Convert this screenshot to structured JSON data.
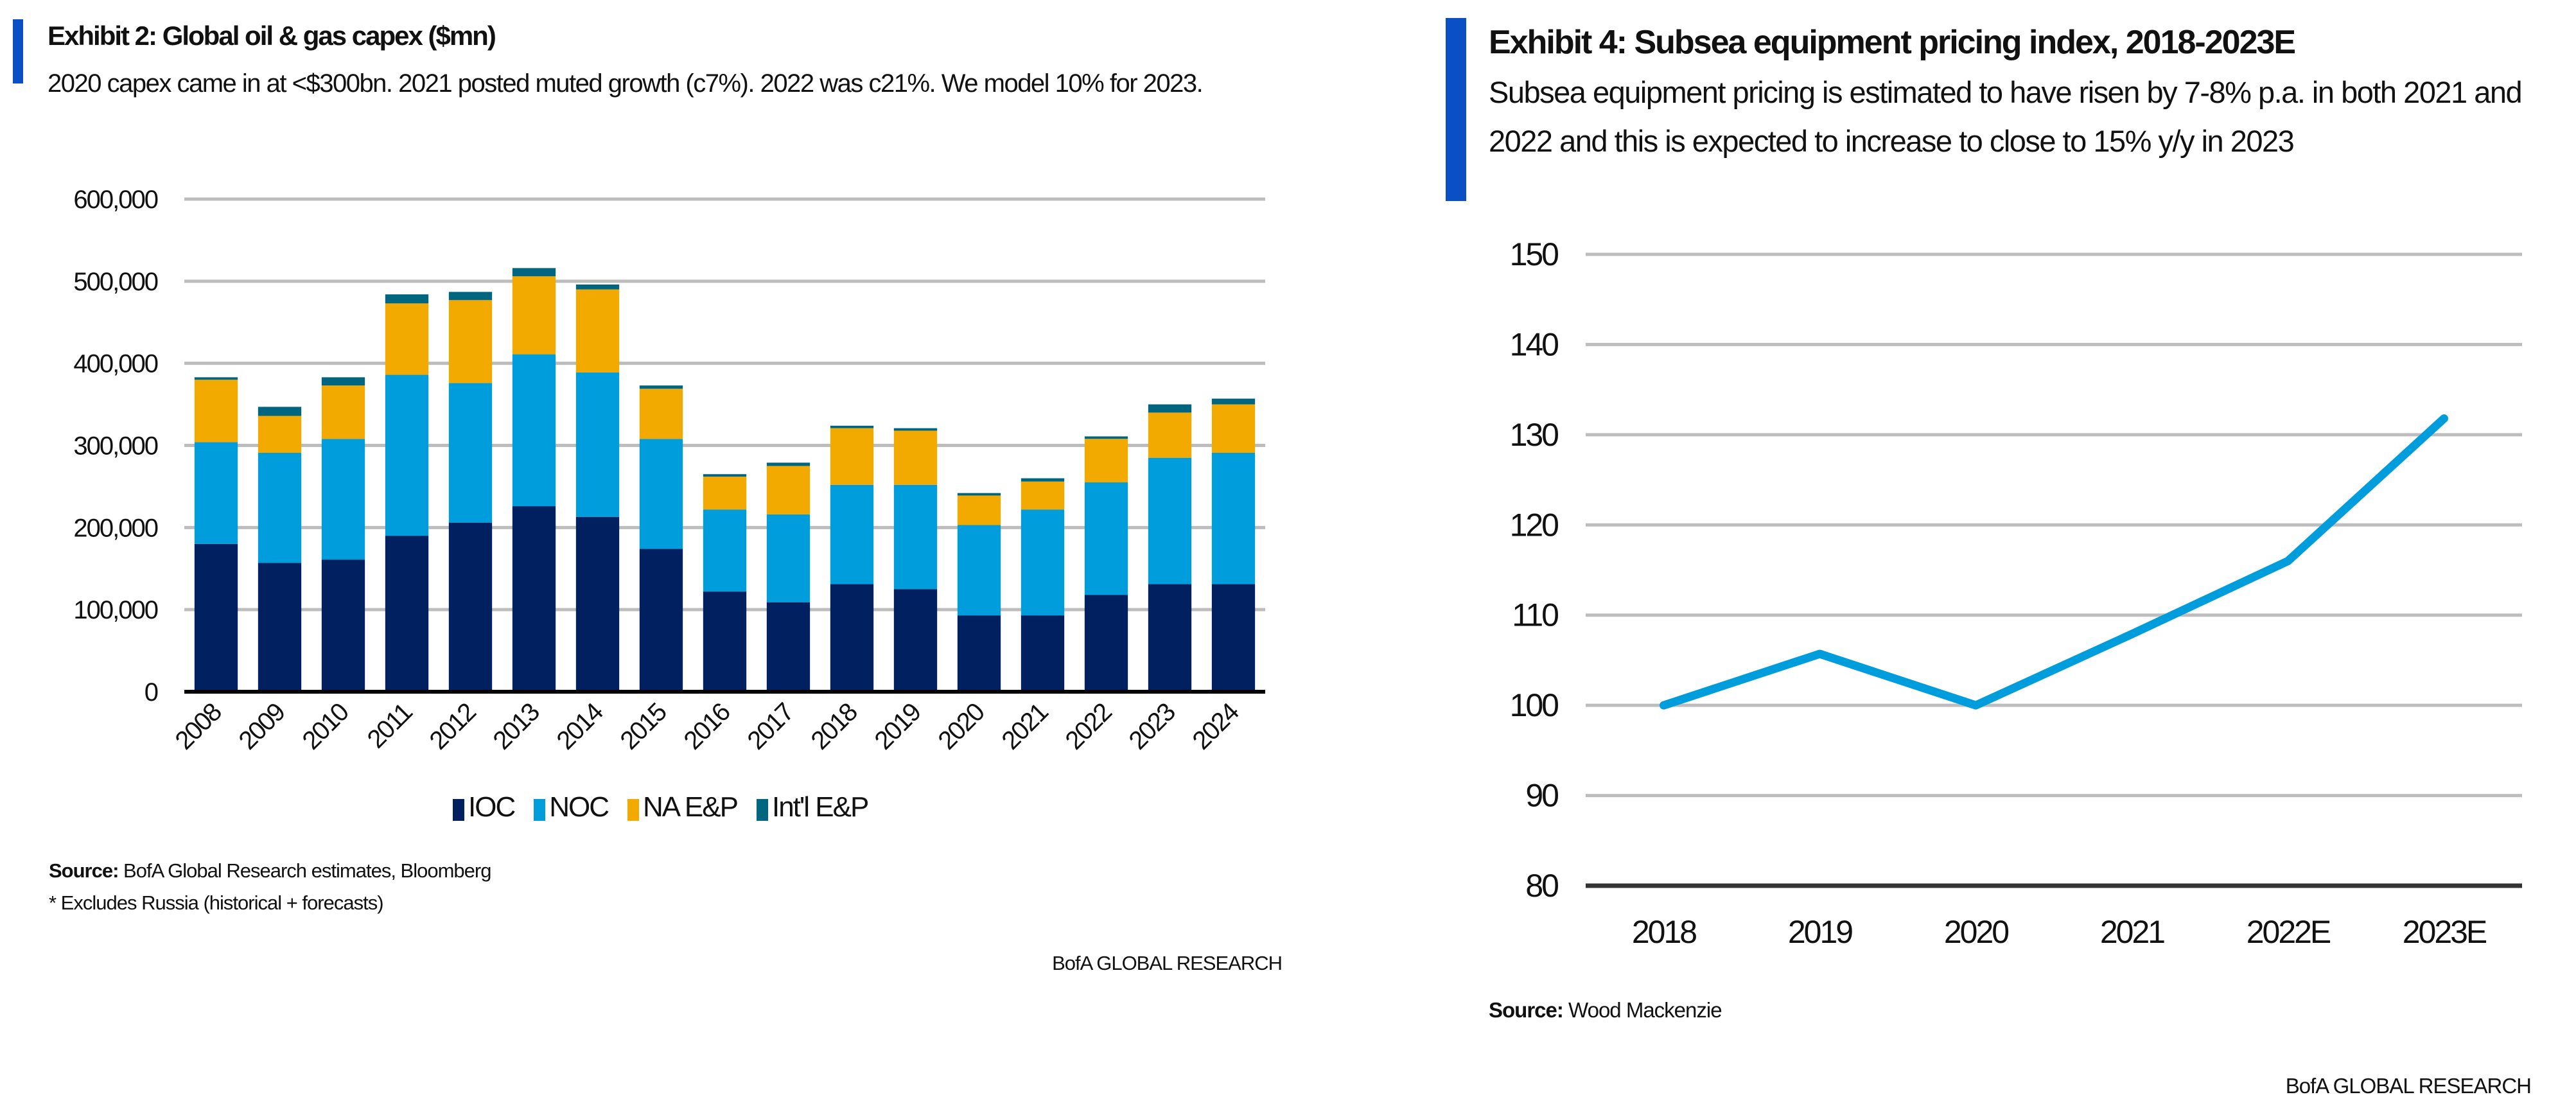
{
  "left": {
    "title": "Exhibit 2: Global oil & gas capex ($mn)",
    "subtitle": "2020 capex came in at <$300bn. 2021 posted muted growth (c7%). 2022 was c21%. We model 10% for 2023.",
    "source_label": "Source:",
    "source_text": "BofA Global Research estimates, Bloomberg",
    "note": "* Excludes Russia  (historical + forecasts)",
    "brand": "BofA GLOBAL RESEARCH"
  },
  "right": {
    "title": "Exhibit 4: Subsea equipment pricing index, 2018-2023E",
    "subtitle": "Subsea equipment pricing is estimated to have risen by 7-8% p.a. in both 2021 and 2022 and this is expected to increase to close to 15% y/y in 2023",
    "source_label": "Source:",
    "source_text": "Wood Mackenzie",
    "brand": "BofA GLOBAL RESEARCH"
  },
  "chart_data": [
    {
      "type": "bar",
      "stacked": true,
      "categories": [
        "2008",
        "2009",
        "2010",
        "2011",
        "2012",
        "2013",
        "2014",
        "2015",
        "2016",
        "2017",
        "2018",
        "2019",
        "2020",
        "2021",
        "2022",
        "2023",
        "2024"
      ],
      "series": [
        {
          "name": "IOC",
          "color": "#002060",
          "values": [
            180000,
            157000,
            161000,
            190000,
            206000,
            226000,
            213000,
            174000,
            122000,
            109000,
            131000,
            125000,
            93000,
            93000,
            118000,
            131000,
            131000
          ]
        },
        {
          "name": "NOC",
          "color": "#009ddc",
          "values": [
            124000,
            134000,
            147000,
            196000,
            170000,
            185000,
            176000,
            134000,
            100000,
            107000,
            121000,
            127000,
            110000,
            129000,
            137000,
            154000,
            160000
          ]
        },
        {
          "name": "NA E&P",
          "color": "#f2a900",
          "values": [
            76000,
            45000,
            65000,
            87000,
            101000,
            95000,
            101000,
            61000,
            40000,
            59000,
            69000,
            66000,
            36000,
            34000,
            53000,
            55000,
            59000
          ]
        },
        {
          "name": "Int'l E&P",
          "color": "#006680",
          "values": [
            3000,
            11000,
            10000,
            11000,
            10000,
            10000,
            6000,
            4000,
            3000,
            4000,
            3000,
            3000,
            3000,
            4000,
            3000,
            10000,
            7000
          ]
        }
      ],
      "ylim": [
        0,
        600000
      ],
      "yticks": [
        "0",
        "100,000",
        "200,000",
        "300,000",
        "400,000",
        "500,000",
        "600,000"
      ],
      "grid": true,
      "legend": "bottom"
    },
    {
      "type": "line",
      "categories": [
        "2018",
        "2019",
        "2020",
        "2021",
        "2022E",
        "2023E"
      ],
      "series": [
        {
          "color": "#009ddc",
          "values": [
            100,
            105.7,
            100,
            107.9,
            116,
            131.8
          ]
        }
      ],
      "ylim": [
        80,
        150
      ],
      "yticks": [
        "80",
        "90",
        "100",
        "110",
        "120",
        "130",
        "140",
        "150"
      ],
      "grid": true
    }
  ]
}
